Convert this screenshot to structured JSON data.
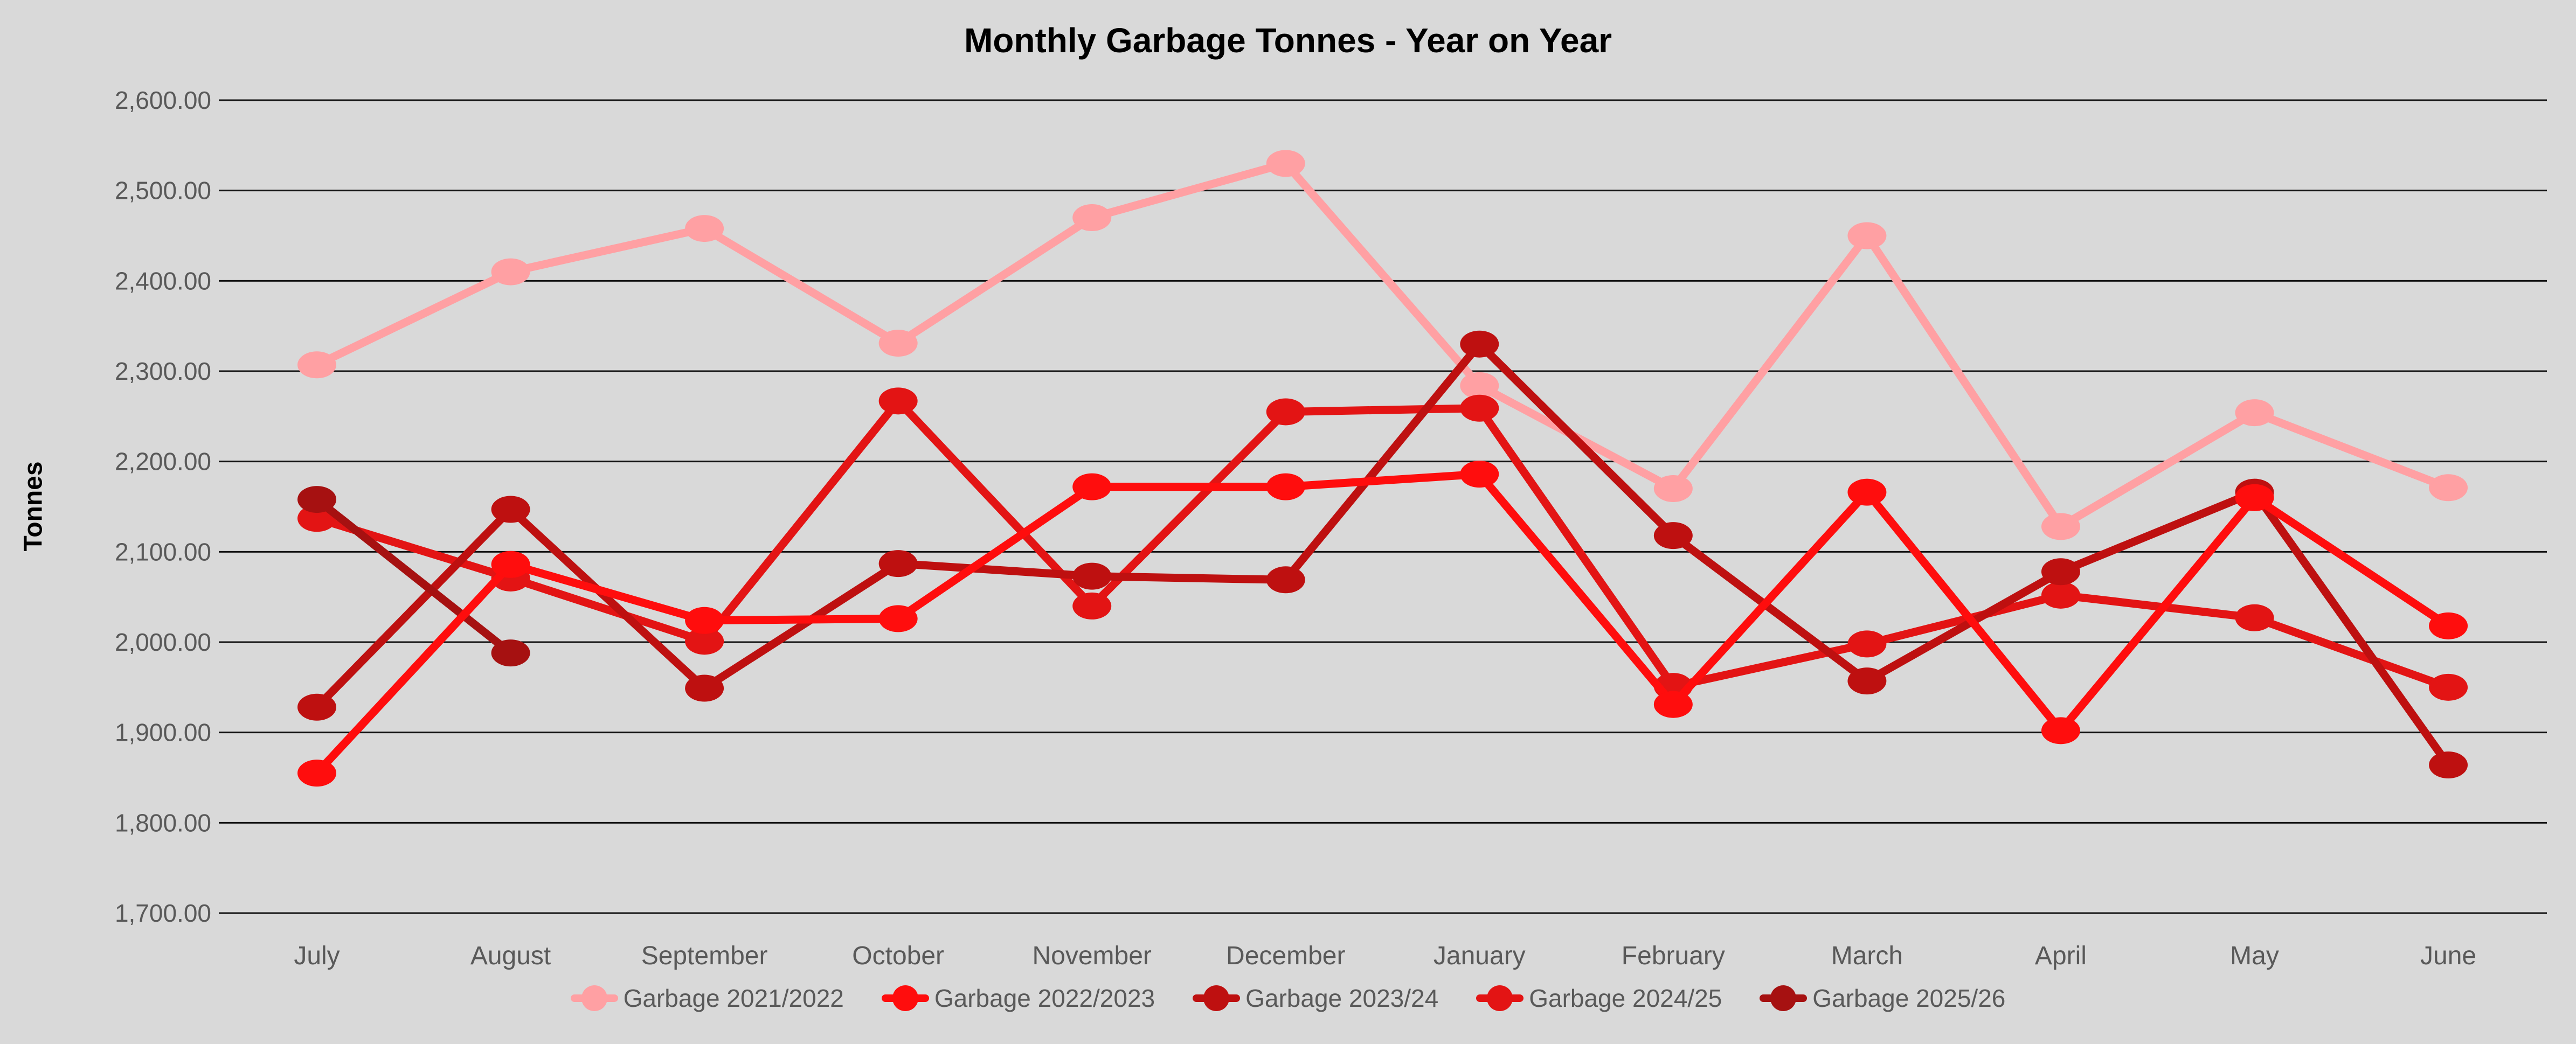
{
  "page": {
    "background_color": "#D9D9D9",
    "text_color": "#595959",
    "grid_color": "#141414"
  },
  "chart_data": {
    "type": "line",
    "title": "Monthly Garbage Tonnes - Year on Year",
    "xlabel": "",
    "ylabel": "Tonnes",
    "ylim": [
      1700,
      2600
    ],
    "ytick_step": 100,
    "ytick_labels": [
      "2,600.00",
      "2,500.00",
      "2,400.00",
      "2,300.00",
      "2,200.00",
      "2,100.00",
      "2,000.00",
      "1,900.00",
      "1,800.00",
      "1,700.00"
    ],
    "grid": true,
    "legend_position": "bottom",
    "categories": [
      "July",
      "August",
      "September",
      "October",
      "November",
      "December",
      "January",
      "February",
      "March",
      "April",
      "May",
      "June"
    ],
    "series": [
      {
        "name": "Garbage 2021/2022",
        "color": "#FFA0A3",
        "values": [
          2307,
          2410,
          2458,
          2331,
          2470,
          2530,
          2284,
          2170,
          2450,
          2128,
          2254,
          2171
        ]
      },
      {
        "name": "Garbage 2022/2023",
        "color": "#FF0D0D",
        "values": [
          1855,
          2086,
          2024,
          2026,
          2172,
          2172,
          2186,
          1931,
          2166,
          1902,
          2160,
          2018
        ]
      },
      {
        "name": "Garbage 2023/24",
        "color": "#BE1010",
        "values": [
          1928,
          2147,
          1949,
          2087,
          2073,
          2069,
          2330,
          2118,
          1957,
          2078,
          2166,
          1864
        ]
      },
      {
        "name": "Garbage 2024/25",
        "color": "#E31414",
        "values": [
          2137,
          2071,
          2001,
          2267,
          2040,
          2255,
          2259,
          1951,
          1998,
          2052,
          2027,
          1950
        ]
      },
      {
        "name": "Garbage 2025/26",
        "color": "#A61111",
        "values": [
          2158,
          1988,
          null,
          null,
          null,
          null,
          null,
          null,
          null,
          null,
          null,
          null
        ]
      }
    ],
    "draw_order": [
      0,
      3,
      2,
      4,
      1
    ]
  }
}
